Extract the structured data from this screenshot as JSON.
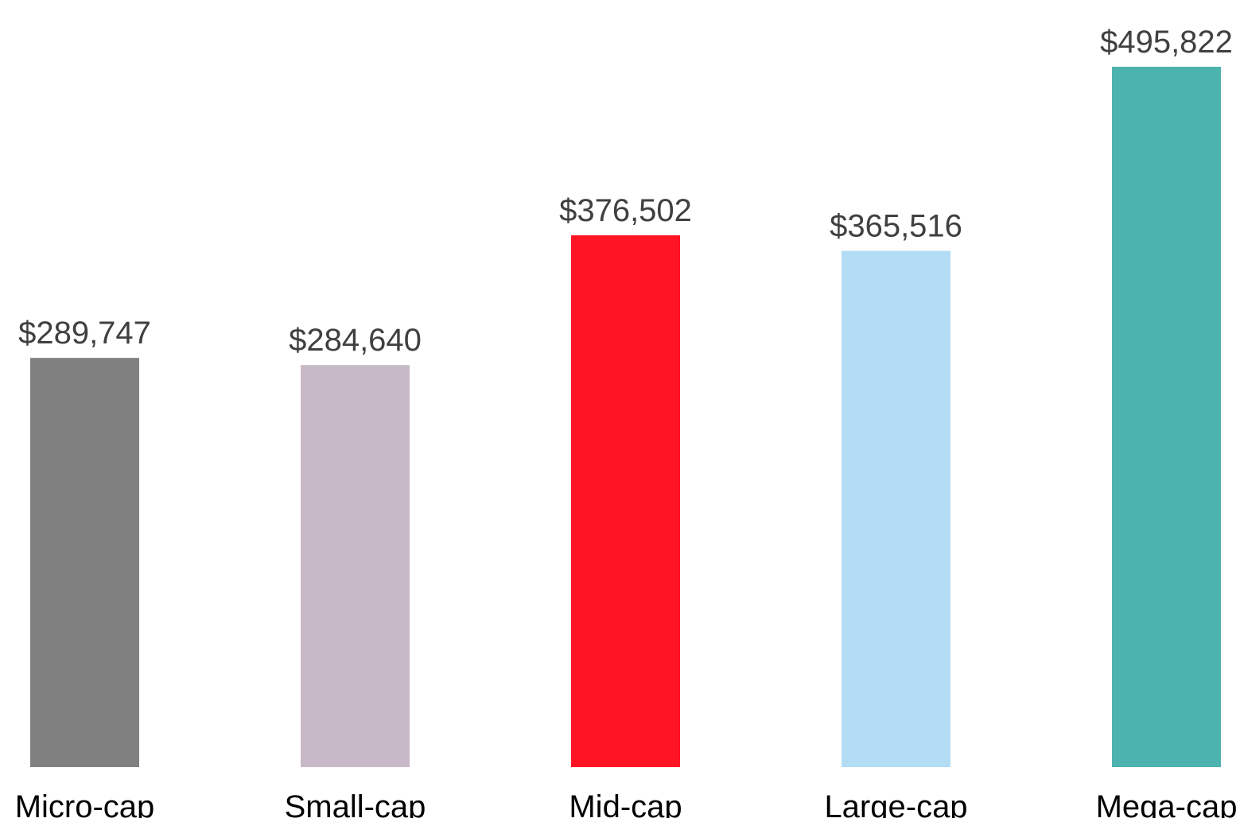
{
  "chart_data": {
    "type": "bar",
    "categories": [
      "Micro-cap",
      "Small-cap",
      "Mid-cap",
      "Large-cap",
      "Mega-cap"
    ],
    "values": [
      289747,
      284640,
      376502,
      365516,
      495822
    ],
    "value_labels": [
      "$289,747",
      "$284,640",
      "$376,502",
      "$365,516",
      "$495,822"
    ],
    "bar_colors": [
      "#808080",
      "#c8b9c8",
      "#ff1423",
      "#b3ddf4",
      "#4db3ae"
    ],
    "ylim": [
      0,
      500000
    ],
    "title": "",
    "xlabel": "",
    "ylabel": "",
    "grid": false,
    "legend": "none"
  }
}
